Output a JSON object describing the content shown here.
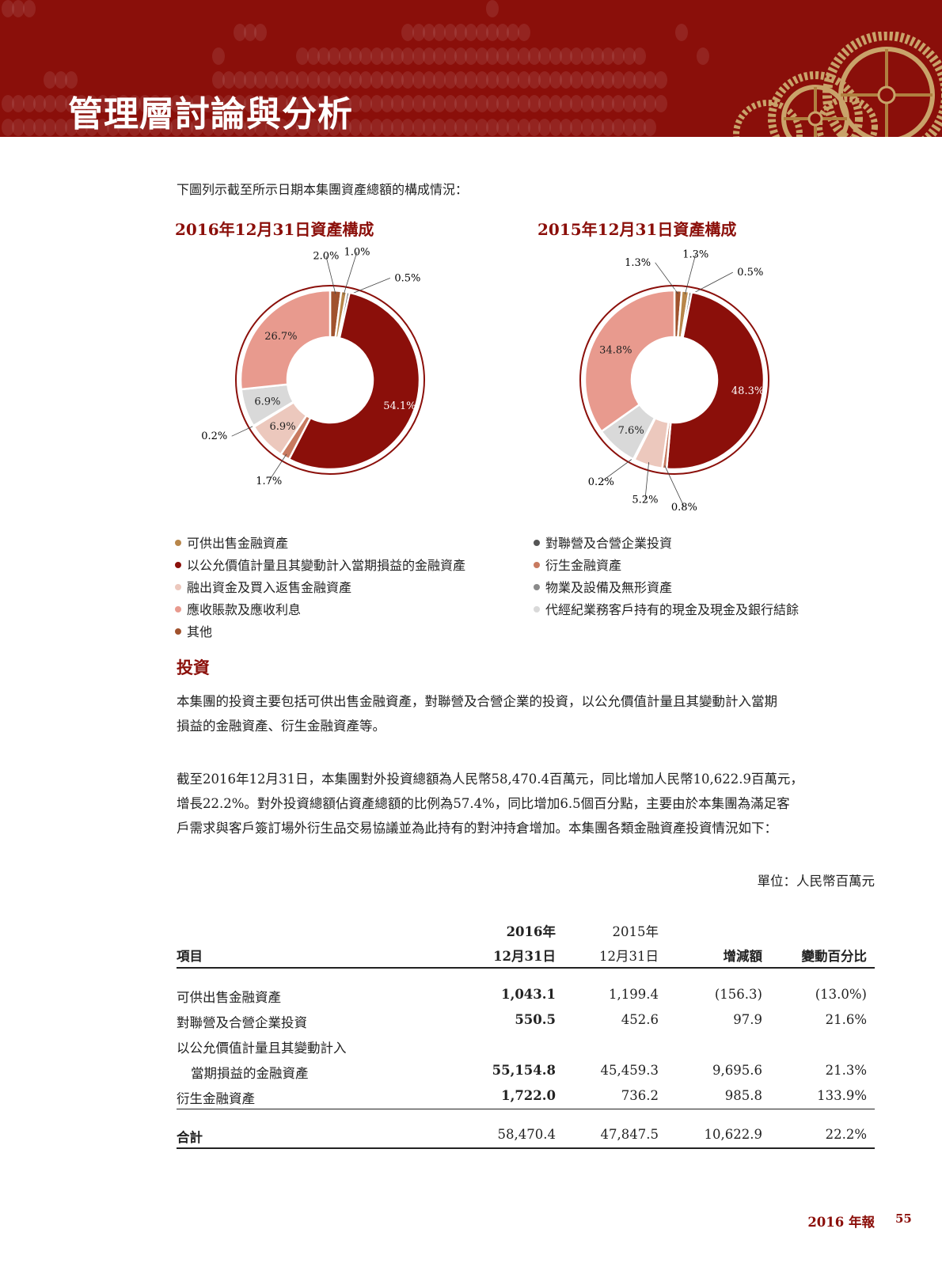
{
  "header": {
    "title": "管理層討論與分析"
  },
  "intro": "下圖列示截至所示日期本集團資產總額的構成情況：",
  "legend_colors": {
    "可供出售金融資產": "#b8864a",
    "以公允價值計量且其變動計入當期損益的金融資產": "#8b0f0a",
    "融出資金及買入返售金融資產": "#ecc8bd",
    "應收賬款及應收利息": "#e89a8e",
    "其他": "#a0522d",
    "對聯營及合營企業投資": "#555555",
    "衍生金融資產": "#c87a60",
    "物業及設備及無形資產": "#8a8a8a",
    "代經紀業務客戶持有的現金及現金及銀行結餘": "#d9d9d9"
  },
  "legend": {
    "left": [
      "可供出售金融資產",
      "以公允價值計量且其變動計入當期損益的金融資產",
      "融出資金及買入返售金融資產",
      "應收賬款及應收利息",
      "其他"
    ],
    "right": [
      "對聯營及合營企業投資",
      "衍生金融資產",
      "物業及設備及無形資產",
      "代經紀業務客戶持有的現金及現金及銀行結餘"
    ]
  },
  "chart_data": [
    {
      "type": "pie",
      "title": "2016年12月31日資產構成",
      "categories": [
        "其他",
        "可供出售金融資產",
        "對聯營及合營企業投資",
        "以公允價值計量且其變動計入當期損益的金融資產",
        "衍生金融資產",
        "融出資金及買入返售金融資產",
        "物業及設備及無形資產",
        "代經紀業務客戶持有的現金及現金及銀行結餘",
        "應收賬款及應收利息"
      ],
      "values": [
        2.0,
        1.0,
        0.5,
        54.1,
        1.7,
        6.9,
        0.2,
        6.9,
        26.7
      ],
      "labels": [
        "2.0%",
        "1.0%",
        "0.5%",
        "54.1%",
        "1.7%",
        "6.9%",
        "0.2%",
        "6.9%",
        "26.7%"
      ]
    },
    {
      "type": "pie",
      "title": "2015年12月31日資產構成",
      "categories": [
        "其他",
        "可供出售金融資產",
        "對聯營及合營企業投資",
        "以公允價值計量且其變動計入當期損益的金融資產",
        "衍生金融資產",
        "融出資金及買入返售金融資產",
        "物業及設備及無形資產",
        "代經紀業務客戶持有的現金及現金及銀行結餘",
        "應收賬款及應收利息"
      ],
      "values": [
        1.3,
        1.3,
        0.5,
        48.3,
        0.8,
        5.2,
        0.2,
        7.6,
        34.8
      ],
      "labels": [
        "1.3%",
        "1.3%",
        "0.5%",
        "48.3%",
        "0.8%",
        "5.2%",
        "0.2%",
        "7.6%",
        "34.8%"
      ]
    }
  ],
  "section": {
    "title": "投資",
    "para1": [
      "本集團的投資主要包括可供出售金融資產，對聯營及合營企業的投資，以公允價值計量且其變動計入當期",
      "損益的金融資產、衍生金融資產等。"
    ],
    "para2": [
      "截至2016年12月31日，本集團對外投資總額為人民幣58,470.4百萬元，同比增加人民幣10,622.9百萬元，",
      "增長22.2%。對外投資總額佔資產總額的比例為57.4%，同比增加6.5個百分點，主要由於本集團為滿足客",
      "戶需求與客戶簽訂場外衍生品交易協議並為此持有的對沖持倉增加。本集團各類金融資產投資情況如下："
    ]
  },
  "table": {
    "unit": "單位：人民幣百萬元",
    "headers": {
      "item": "項目",
      "c2016a": "2016年",
      "c2016b": "12月31日",
      "c2015a": "2015年",
      "c2015b": "12月31日",
      "change": "增減額",
      "pct": "變動百分比"
    },
    "rows": [
      {
        "item": "可供出售金融資產",
        "v2016": "1,043.1",
        "v2015": "1,199.4",
        "change": "(156.3)",
        "pct": "(13.0%)"
      },
      {
        "item": "對聯營及合營企業投資",
        "v2016": "550.5",
        "v2015": "452.6",
        "change": "97.9",
        "pct": "21.6%"
      },
      {
        "item": "以公允價值計量且其變動計入",
        "item2": "當期損益的金融資產",
        "v2016": "55,154.8",
        "v2015": "45,459.3",
        "change": "9,695.6",
        "pct": "21.3%"
      },
      {
        "item": "衍生金融資產",
        "v2016": "1,722.0",
        "v2015": "736.2",
        "change": "985.8",
        "pct": "133.9%"
      }
    ],
    "total": {
      "item": "合計",
      "v2016": "58,470.4",
      "v2015": "47,847.5",
      "change": "10,622.9",
      "pct": "22.2%"
    }
  },
  "footer": {
    "report": "2016 年報",
    "page": "55"
  }
}
